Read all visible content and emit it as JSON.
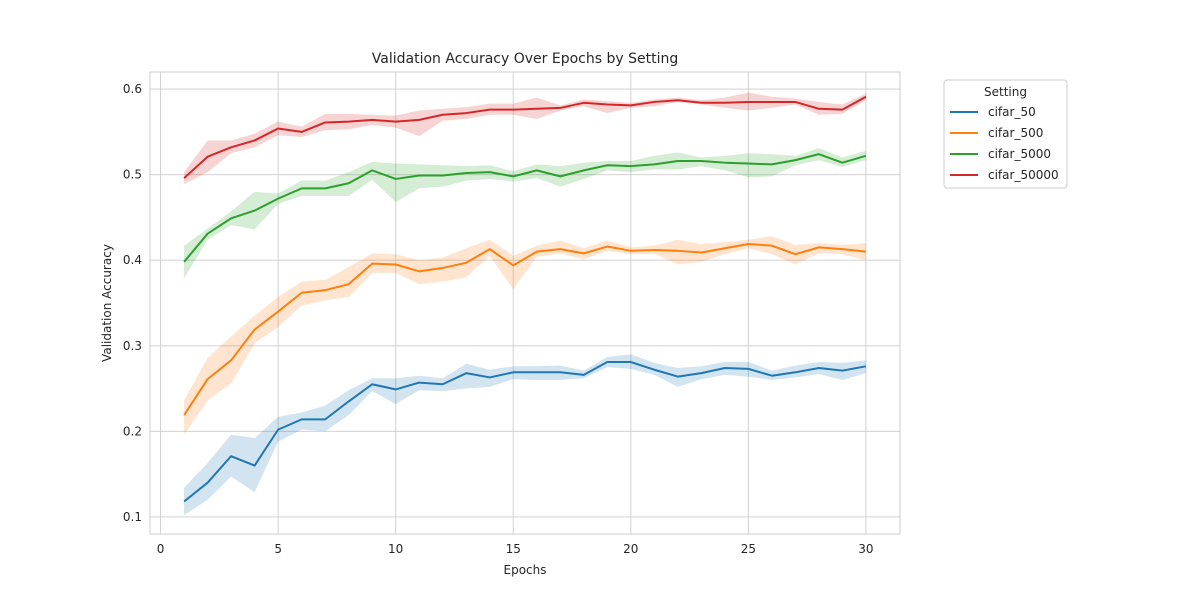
{
  "chart_data": {
    "type": "line",
    "title": "Validation Accuracy Over Epochs by Setting",
    "xlabel": "Epochs",
    "ylabel": "Validation Accuracy",
    "xlim": [
      -0.45,
      31.45
    ],
    "ylim": [
      0.08,
      0.62
    ],
    "xticks": [
      0,
      5,
      10,
      15,
      20,
      25,
      30
    ],
    "yticks": [
      0.1,
      0.2,
      0.3,
      0.4,
      0.5,
      0.6
    ],
    "grid": true,
    "legend": {
      "title": "Setting",
      "placement": "outside-top-right"
    },
    "x": [
      1,
      2,
      3,
      4,
      5,
      6,
      7,
      8,
      9,
      10,
      11,
      12,
      13,
      14,
      15,
      16,
      17,
      18,
      19,
      20,
      21,
      22,
      23,
      24,
      25,
      26,
      27,
      28,
      29,
      30
    ],
    "series": [
      {
        "name": "cifar_50",
        "color": "#1f77b4",
        "values": [
          0.118,
          0.14,
          0.171,
          0.16,
          0.202,
          0.214,
          0.214,
          0.235,
          0.255,
          0.249,
          0.257,
          0.255,
          0.268,
          0.263,
          0.269,
          0.269,
          0.269,
          0.266,
          0.281,
          0.281,
          0.272,
          0.264,
          0.268,
          0.274,
          0.273,
          0.265,
          0.269,
          0.274,
          0.271,
          0.276
        ],
        "lower": [
          0.102,
          0.12,
          0.147,
          0.129,
          0.188,
          0.202,
          0.2,
          0.219,
          0.247,
          0.232,
          0.248,
          0.247,
          0.25,
          0.252,
          0.261,
          0.26,
          0.26,
          0.262,
          0.275,
          0.273,
          0.266,
          0.252,
          0.261,
          0.266,
          0.264,
          0.26,
          0.263,
          0.267,
          0.26,
          0.268
        ],
        "upper": [
          0.134,
          0.163,
          0.196,
          0.192,
          0.217,
          0.222,
          0.23,
          0.248,
          0.262,
          0.262,
          0.265,
          0.262,
          0.279,
          0.272,
          0.276,
          0.276,
          0.277,
          0.271,
          0.287,
          0.29,
          0.28,
          0.274,
          0.276,
          0.281,
          0.281,
          0.271,
          0.277,
          0.281,
          0.28,
          0.283
        ]
      },
      {
        "name": "cifar_500",
        "color": "#ff7f0e",
        "values": [
          0.219,
          0.261,
          0.283,
          0.319,
          0.34,
          0.362,
          0.365,
          0.372,
          0.396,
          0.395,
          0.387,
          0.391,
          0.397,
          0.413,
          0.394,
          0.41,
          0.413,
          0.408,
          0.416,
          0.411,
          0.412,
          0.411,
          0.409,
          0.414,
          0.419,
          0.417,
          0.407,
          0.415,
          0.413,
          0.41
        ],
        "lower": [
          0.196,
          0.236,
          0.256,
          0.303,
          0.322,
          0.347,
          0.353,
          0.357,
          0.385,
          0.385,
          0.372,
          0.375,
          0.38,
          0.405,
          0.366,
          0.404,
          0.408,
          0.401,
          0.411,
          0.407,
          0.408,
          0.395,
          0.398,
          0.407,
          0.414,
          0.407,
          0.395,
          0.408,
          0.407,
          0.4
        ],
        "upper": [
          0.236,
          0.286,
          0.311,
          0.335,
          0.357,
          0.375,
          0.377,
          0.392,
          0.408,
          0.407,
          0.4,
          0.403,
          0.414,
          0.424,
          0.405,
          0.417,
          0.423,
          0.414,
          0.423,
          0.415,
          0.417,
          0.424,
          0.419,
          0.421,
          0.424,
          0.428,
          0.418,
          0.42,
          0.418,
          0.42
        ]
      },
      {
        "name": "cifar_5000",
        "color": "#2ca02c",
        "values": [
          0.398,
          0.431,
          0.449,
          0.458,
          0.472,
          0.484,
          0.484,
          0.49,
          0.505,
          0.495,
          0.499,
          0.499,
          0.502,
          0.503,
          0.498,
          0.505,
          0.498,
          0.505,
          0.511,
          0.51,
          0.512,
          0.516,
          0.516,
          0.514,
          0.513,
          0.512,
          0.517,
          0.524,
          0.514,
          0.522
        ],
        "lower": [
          0.379,
          0.424,
          0.441,
          0.436,
          0.466,
          0.475,
          0.475,
          0.475,
          0.494,
          0.468,
          0.484,
          0.486,
          0.493,
          0.495,
          0.492,
          0.496,
          0.486,
          0.495,
          0.505,
          0.503,
          0.506,
          0.506,
          0.51,
          0.505,
          0.497,
          0.498,
          0.511,
          0.517,
          0.509,
          0.517
        ],
        "upper": [
          0.417,
          0.437,
          0.457,
          0.48,
          0.478,
          0.493,
          0.493,
          0.503,
          0.515,
          0.513,
          0.512,
          0.511,
          0.51,
          0.511,
          0.504,
          0.512,
          0.51,
          0.514,
          0.516,
          0.516,
          0.522,
          0.526,
          0.52,
          0.522,
          0.525,
          0.524,
          0.522,
          0.531,
          0.52,
          0.528
        ]
      },
      {
        "name": "cifar_50000",
        "color": "#d62728",
        "values": [
          0.496,
          0.521,
          0.532,
          0.54,
          0.554,
          0.55,
          0.561,
          0.562,
          0.564,
          0.562,
          0.564,
          0.57,
          0.572,
          0.576,
          0.576,
          0.577,
          0.578,
          0.584,
          0.582,
          0.581,
          0.585,
          0.587,
          0.584,
          0.584,
          0.585,
          0.585,
          0.585,
          0.577,
          0.576,
          0.591
        ],
        "lower": [
          0.489,
          0.503,
          0.525,
          0.532,
          0.546,
          0.544,
          0.552,
          0.553,
          0.558,
          0.555,
          0.545,
          0.563,
          0.565,
          0.57,
          0.57,
          0.565,
          0.575,
          0.58,
          0.572,
          0.578,
          0.58,
          0.585,
          0.582,
          0.578,
          0.575,
          0.578,
          0.582,
          0.57,
          0.571,
          0.587
        ],
        "upper": [
          0.503,
          0.54,
          0.54,
          0.548,
          0.562,
          0.556,
          0.571,
          0.571,
          0.57,
          0.569,
          0.575,
          0.577,
          0.579,
          0.583,
          0.583,
          0.59,
          0.581,
          0.588,
          0.586,
          0.584,
          0.588,
          0.59,
          0.587,
          0.59,
          0.596,
          0.591,
          0.589,
          0.585,
          0.582,
          0.595
        ]
      }
    ]
  }
}
